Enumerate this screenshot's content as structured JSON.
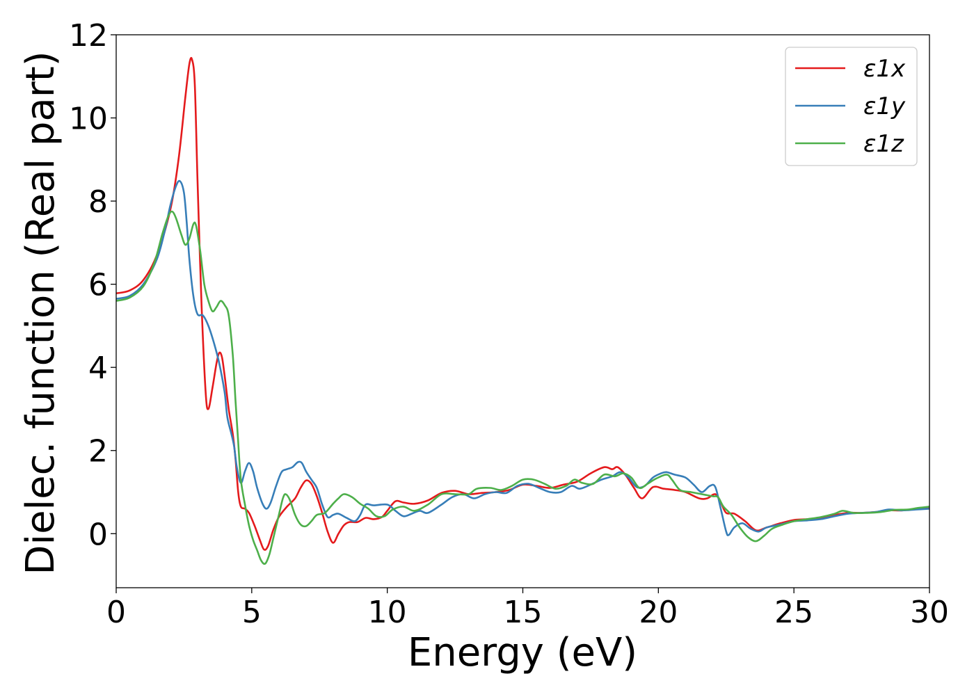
{
  "chart_data": {
    "type": "line",
    "xlabel": "Energy (eV)",
    "ylabel": "Dielec. function (Real part)",
    "xlim": [
      0,
      30
    ],
    "ylim": [
      -1.3,
      12
    ],
    "xticks": [
      0,
      5,
      10,
      15,
      20,
      25,
      30
    ],
    "yticks": [
      0,
      2,
      4,
      6,
      8,
      10,
      12
    ],
    "legend_position": "top-right",
    "grid": false,
    "series": [
      {
        "name": "ε1x",
        "color": "#e41a1c",
        "points": [
          [
            0,
            5.78
          ],
          [
            0.5,
            5.85
          ],
          [
            1,
            6.1
          ],
          [
            1.5,
            6.7
          ],
          [
            2,
            7.8
          ],
          [
            2.3,
            9.0
          ],
          [
            2.55,
            10.5
          ],
          [
            2.7,
            11.3
          ],
          [
            2.8,
            11.4
          ],
          [
            2.9,
            10.8
          ],
          [
            3.0,
            8.5
          ],
          [
            3.15,
            5.5
          ],
          [
            3.3,
            3.4
          ],
          [
            3.4,
            3.0
          ],
          [
            3.55,
            3.5
          ],
          [
            3.7,
            4.1
          ],
          [
            3.8,
            4.35
          ],
          [
            3.9,
            4.25
          ],
          [
            4.0,
            3.8
          ],
          [
            4.15,
            3.0
          ],
          [
            4.3,
            2.4
          ],
          [
            4.4,
            1.8
          ],
          [
            4.5,
            1.0
          ],
          [
            4.6,
            0.65
          ],
          [
            4.75,
            0.6
          ],
          [
            4.9,
            0.5
          ],
          [
            5.1,
            0.2
          ],
          [
            5.3,
            -0.15
          ],
          [
            5.45,
            -0.38
          ],
          [
            5.6,
            -0.3
          ],
          [
            5.8,
            0.1
          ],
          [
            6.0,
            0.4
          ],
          [
            6.3,
            0.65
          ],
          [
            6.6,
            0.85
          ],
          [
            6.8,
            1.1
          ],
          [
            7.0,
            1.28
          ],
          [
            7.2,
            1.2
          ],
          [
            7.4,
            0.9
          ],
          [
            7.6,
            0.5
          ],
          [
            7.8,
            0.05
          ],
          [
            8.0,
            -0.22
          ],
          [
            8.2,
            0.0
          ],
          [
            8.4,
            0.2
          ],
          [
            8.6,
            0.28
          ],
          [
            8.9,
            0.28
          ],
          [
            9.2,
            0.38
          ],
          [
            9.5,
            0.35
          ],
          [
            9.8,
            0.4
          ],
          [
            10.0,
            0.55
          ],
          [
            10.3,
            0.78
          ],
          [
            10.6,
            0.75
          ],
          [
            11.0,
            0.72
          ],
          [
            11.5,
            0.8
          ],
          [
            12.0,
            0.98
          ],
          [
            12.5,
            1.03
          ],
          [
            13.0,
            0.95
          ],
          [
            13.5,
            0.98
          ],
          [
            14.0,
            1.0
          ],
          [
            14.5,
            1.05
          ],
          [
            15.0,
            1.18
          ],
          [
            15.5,
            1.15
          ],
          [
            16.0,
            1.1
          ],
          [
            16.5,
            1.18
          ],
          [
            17.0,
            1.25
          ],
          [
            17.5,
            1.45
          ],
          [
            18.0,
            1.6
          ],
          [
            18.3,
            1.55
          ],
          [
            18.5,
            1.6
          ],
          [
            18.8,
            1.4
          ],
          [
            19.1,
            1.1
          ],
          [
            19.4,
            0.85
          ],
          [
            19.8,
            1.12
          ],
          [
            20.2,
            1.08
          ],
          [
            20.6,
            1.05
          ],
          [
            21.0,
            1.0
          ],
          [
            21.5,
            0.85
          ],
          [
            21.8,
            0.85
          ],
          [
            22.1,
            0.95
          ],
          [
            22.3,
            0.75
          ],
          [
            22.5,
            0.5
          ],
          [
            22.8,
            0.48
          ],
          [
            23.2,
            0.3
          ],
          [
            23.6,
            0.08
          ],
          [
            24.0,
            0.15
          ],
          [
            24.5,
            0.25
          ],
          [
            25.0,
            0.33
          ],
          [
            25.5,
            0.35
          ],
          [
            26.0,
            0.38
          ],
          [
            26.5,
            0.45
          ],
          [
            27.0,
            0.5
          ],
          [
            27.5,
            0.5
          ],
          [
            28.0,
            0.52
          ],
          [
            28.5,
            0.56
          ],
          [
            29.0,
            0.56
          ],
          [
            29.5,
            0.6
          ],
          [
            30.0,
            0.62
          ]
        ]
      },
      {
        "name": "ε1y",
        "color": "#377eb8",
        "points": [
          [
            0,
            5.65
          ],
          [
            0.5,
            5.72
          ],
          [
            1,
            6.0
          ],
          [
            1.5,
            6.6
          ],
          [
            1.8,
            7.3
          ],
          [
            2.0,
            7.9
          ],
          [
            2.2,
            8.35
          ],
          [
            2.35,
            8.48
          ],
          [
            2.5,
            8.2
          ],
          [
            2.6,
            7.5
          ],
          [
            2.7,
            6.6
          ],
          [
            2.85,
            5.7
          ],
          [
            3.0,
            5.28
          ],
          [
            3.2,
            5.25
          ],
          [
            3.4,
            5.0
          ],
          [
            3.6,
            4.6
          ],
          [
            3.8,
            4.1
          ],
          [
            4.0,
            3.4
          ],
          [
            4.1,
            2.8
          ],
          [
            4.25,
            2.4
          ],
          [
            4.35,
            2.1
          ],
          [
            4.45,
            1.6
          ],
          [
            4.6,
            1.22
          ],
          [
            4.75,
            1.5
          ],
          [
            4.9,
            1.7
          ],
          [
            5.05,
            1.5
          ],
          [
            5.2,
            1.1
          ],
          [
            5.4,
            0.72
          ],
          [
            5.55,
            0.6
          ],
          [
            5.7,
            0.75
          ],
          [
            5.9,
            1.15
          ],
          [
            6.1,
            1.48
          ],
          [
            6.3,
            1.55
          ],
          [
            6.5,
            1.6
          ],
          [
            6.7,
            1.72
          ],
          [
            6.85,
            1.7
          ],
          [
            7.0,
            1.5
          ],
          [
            7.2,
            1.3
          ],
          [
            7.4,
            1.1
          ],
          [
            7.6,
            0.7
          ],
          [
            7.8,
            0.4
          ],
          [
            8.0,
            0.45
          ],
          [
            8.2,
            0.48
          ],
          [
            8.5,
            0.38
          ],
          [
            8.8,
            0.3
          ],
          [
            9.0,
            0.45
          ],
          [
            9.2,
            0.7
          ],
          [
            9.5,
            0.68
          ],
          [
            10.0,
            0.7
          ],
          [
            10.3,
            0.55
          ],
          [
            10.6,
            0.42
          ],
          [
            10.9,
            0.48
          ],
          [
            11.2,
            0.55
          ],
          [
            11.5,
            0.5
          ],
          [
            12.0,
            0.7
          ],
          [
            12.4,
            0.88
          ],
          [
            12.8,
            0.95
          ],
          [
            13.2,
            0.85
          ],
          [
            13.6,
            0.95
          ],
          [
            14.0,
            1.0
          ],
          [
            14.4,
            0.98
          ],
          [
            14.8,
            1.15
          ],
          [
            15.2,
            1.2
          ],
          [
            15.6,
            1.1
          ],
          [
            16.0,
            1.0
          ],
          [
            16.4,
            1.0
          ],
          [
            16.8,
            1.15
          ],
          [
            17.1,
            1.08
          ],
          [
            17.5,
            1.18
          ],
          [
            17.9,
            1.3
          ],
          [
            18.3,
            1.38
          ],
          [
            18.6,
            1.48
          ],
          [
            18.9,
            1.35
          ],
          [
            19.2,
            1.12
          ],
          [
            19.5,
            1.15
          ],
          [
            19.8,
            1.35
          ],
          [
            20.1,
            1.45
          ],
          [
            20.3,
            1.48
          ],
          [
            20.6,
            1.42
          ],
          [
            21.0,
            1.35
          ],
          [
            21.3,
            1.18
          ],
          [
            21.6,
            1.0
          ],
          [
            21.9,
            1.15
          ],
          [
            22.1,
            1.12
          ],
          [
            22.3,
            0.6
          ],
          [
            22.5,
            0.05
          ],
          [
            22.6,
            -0.03
          ],
          [
            22.8,
            0.15
          ],
          [
            23.1,
            0.25
          ],
          [
            23.4,
            0.12
          ],
          [
            23.7,
            0.05
          ],
          [
            24.0,
            0.15
          ],
          [
            24.5,
            0.22
          ],
          [
            25.0,
            0.3
          ],
          [
            25.5,
            0.32
          ],
          [
            26.0,
            0.35
          ],
          [
            26.5,
            0.42
          ],
          [
            27.0,
            0.48
          ],
          [
            27.5,
            0.5
          ],
          [
            28.0,
            0.52
          ],
          [
            28.5,
            0.58
          ],
          [
            29.0,
            0.56
          ],
          [
            29.5,
            0.58
          ],
          [
            30.0,
            0.6
          ]
        ]
      },
      {
        "name": "ε1z",
        "color": "#4daf4a",
        "points": [
          [
            0,
            5.6
          ],
          [
            0.5,
            5.68
          ],
          [
            1,
            5.95
          ],
          [
            1.4,
            6.5
          ],
          [
            1.7,
            7.2
          ],
          [
            1.9,
            7.6
          ],
          [
            2.05,
            7.75
          ],
          [
            2.2,
            7.6
          ],
          [
            2.4,
            7.2
          ],
          [
            2.55,
            6.95
          ],
          [
            2.7,
            7.1
          ],
          [
            2.85,
            7.45
          ],
          [
            2.95,
            7.4
          ],
          [
            3.1,
            6.8
          ],
          [
            3.25,
            6.0
          ],
          [
            3.4,
            5.6
          ],
          [
            3.55,
            5.35
          ],
          [
            3.7,
            5.45
          ],
          [
            3.85,
            5.6
          ],
          [
            4.0,
            5.5
          ],
          [
            4.15,
            5.25
          ],
          [
            4.3,
            4.3
          ],
          [
            4.4,
            3.2
          ],
          [
            4.5,
            2.2
          ],
          [
            4.6,
            1.3
          ],
          [
            4.75,
            0.7
          ],
          [
            4.9,
            0.2
          ],
          [
            5.05,
            -0.15
          ],
          [
            5.2,
            -0.4
          ],
          [
            5.35,
            -0.65
          ],
          [
            5.5,
            -0.72
          ],
          [
            5.65,
            -0.5
          ],
          [
            5.8,
            -0.1
          ],
          [
            6.0,
            0.45
          ],
          [
            6.15,
            0.85
          ],
          [
            6.25,
            0.95
          ],
          [
            6.4,
            0.82
          ],
          [
            6.6,
            0.45
          ],
          [
            6.8,
            0.22
          ],
          [
            7.0,
            0.18
          ],
          [
            7.2,
            0.3
          ],
          [
            7.4,
            0.45
          ],
          [
            7.7,
            0.5
          ],
          [
            8.0,
            0.72
          ],
          [
            8.2,
            0.85
          ],
          [
            8.4,
            0.95
          ],
          [
            8.7,
            0.88
          ],
          [
            9.0,
            0.72
          ],
          [
            9.3,
            0.6
          ],
          [
            9.6,
            0.42
          ],
          [
            9.9,
            0.42
          ],
          [
            10.2,
            0.58
          ],
          [
            10.6,
            0.65
          ],
          [
            11.0,
            0.55
          ],
          [
            11.5,
            0.7
          ],
          [
            12.0,
            0.95
          ],
          [
            12.5,
            0.95
          ],
          [
            13.0,
            0.95
          ],
          [
            13.3,
            1.08
          ],
          [
            13.8,
            1.1
          ],
          [
            14.2,
            1.05
          ],
          [
            14.6,
            1.15
          ],
          [
            15.0,
            1.3
          ],
          [
            15.4,
            1.3
          ],
          [
            15.8,
            1.2
          ],
          [
            16.2,
            1.08
          ],
          [
            16.6,
            1.15
          ],
          [
            16.9,
            1.3
          ],
          [
            17.2,
            1.22
          ],
          [
            17.6,
            1.2
          ],
          [
            18.0,
            1.42
          ],
          [
            18.4,
            1.38
          ],
          [
            18.7,
            1.45
          ],
          [
            19.0,
            1.35
          ],
          [
            19.3,
            1.1
          ],
          [
            19.6,
            1.2
          ],
          [
            19.9,
            1.32
          ],
          [
            20.3,
            1.42
          ],
          [
            20.5,
            1.3
          ],
          [
            20.8,
            1.05
          ],
          [
            21.2,
            1.0
          ],
          [
            21.6,
            0.95
          ],
          [
            22.0,
            0.9
          ],
          [
            22.2,
            0.88
          ],
          [
            22.4,
            0.65
          ],
          [
            22.7,
            0.45
          ],
          [
            23.0,
            0.15
          ],
          [
            23.3,
            -0.08
          ],
          [
            23.6,
            -0.18
          ],
          [
            23.9,
            -0.05
          ],
          [
            24.2,
            0.12
          ],
          [
            24.6,
            0.22
          ],
          [
            25.0,
            0.3
          ],
          [
            25.5,
            0.35
          ],
          [
            26.0,
            0.4
          ],
          [
            26.5,
            0.48
          ],
          [
            26.8,
            0.55
          ],
          [
            27.2,
            0.5
          ],
          [
            27.7,
            0.5
          ],
          [
            28.2,
            0.52
          ],
          [
            28.7,
            0.57
          ],
          [
            29.2,
            0.58
          ],
          [
            29.6,
            0.62
          ],
          [
            30.0,
            0.65
          ]
        ]
      }
    ]
  }
}
